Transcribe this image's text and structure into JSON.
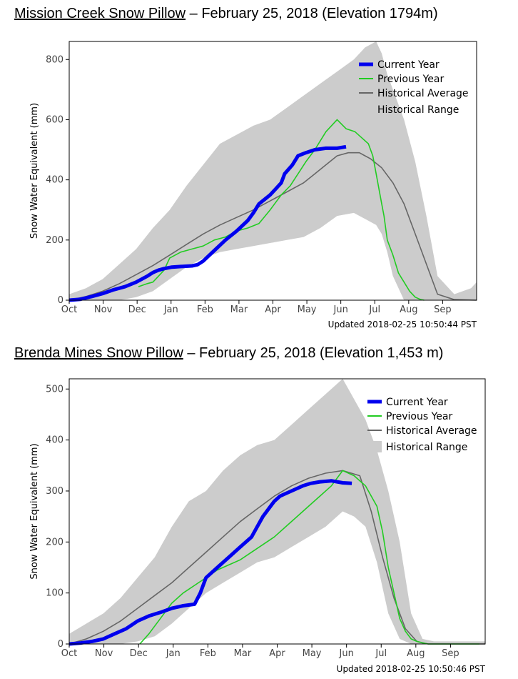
{
  "charts": [
    {
      "heading": {
        "site": "Mission Creek Snow Pillow",
        "rest": " – February 25, 2018 (Elevation 1794m)"
      },
      "updated": "Updated 2018-02-25 10:50:44 PST"
    },
    {
      "heading": {
        "site": "Brenda Mines Snow Pillow",
        "rest": " – February 25, 2018 (Elevation 1,453 m)"
      },
      "updated": "Updated 2018-02-25 10:50:46 PST"
    }
  ],
  "chart_data": [
    {
      "type": "line",
      "title": "Mission Creek Snow Pillow – February 25, 2018 (Elevation 1794m)",
      "ylabel": "Snow Water Equivalent (mm)",
      "xlabel": "",
      "x_tick_labels": [
        "Oct",
        "Nov",
        "Dec",
        "Jan",
        "Feb",
        "Mar",
        "Apr",
        "May",
        "Jun",
        "Jul",
        "Aug",
        "Sep"
      ],
      "y_ticks": [
        0,
        200,
        400,
        600,
        800
      ],
      "xlim": [
        0,
        365
      ],
      "ylim": [
        0,
        860
      ],
      "legend_position": "top-right",
      "colors": {
        "current": "#0000ee",
        "previous": "#22cc22",
        "average": "#666666",
        "range": "#cccccc"
      },
      "series": [
        {
          "name": "Current Year",
          "x": [
            0,
            10,
            20,
            30,
            40,
            50,
            60,
            70,
            75,
            80,
            85,
            92,
            100,
            110,
            115,
            120,
            130,
            140,
            150,
            160,
            165,
            170,
            175,
            180,
            185,
            190,
            193,
            200,
            205,
            212,
            220,
            230,
            240,
            248
          ],
          "y": [
            0,
            3,
            12,
            22,
            35,
            45,
            60,
            80,
            92,
            100,
            105,
            110,
            112,
            114,
            118,
            130,
            165,
            200,
            230,
            265,
            290,
            320,
            335,
            350,
            370,
            390,
            420,
            450,
            480,
            490,
            500,
            505,
            505,
            510
          ]
        },
        {
          "name": "Previous Year",
          "x": [
            62,
            70,
            75,
            80,
            85,
            90,
            100,
            110,
            120,
            130,
            140,
            150,
            160,
            170,
            180,
            190,
            198,
            205,
            212,
            220,
            230,
            240,
            248,
            256,
            262,
            268,
            272,
            275,
            280,
            282,
            285,
            290,
            295,
            300,
            305,
            310,
            315,
            318
          ],
          "y": [
            45,
            55,
            60,
            80,
            100,
            140,
            160,
            170,
            180,
            200,
            210,
            230,
            240,
            255,
            300,
            350,
            380,
            420,
            460,
            500,
            560,
            600,
            570,
            560,
            540,
            520,
            480,
            420,
            320,
            280,
            200,
            150,
            90,
            60,
            30,
            10,
            2,
            0
          ]
        },
        {
          "name": "Historical Average",
          "x": [
            0,
            15,
            30,
            45,
            60,
            75,
            90,
            105,
            120,
            135,
            150,
            165,
            180,
            195,
            210,
            220,
            230,
            240,
            250,
            260,
            270,
            280,
            290,
            300,
            310,
            320,
            330,
            345,
            365
          ],
          "y": [
            0,
            12,
            30,
            55,
            85,
            115,
            150,
            185,
            220,
            250,
            275,
            300,
            330,
            360,
            390,
            420,
            450,
            480,
            490,
            490,
            470,
            440,
            390,
            320,
            220,
            120,
            20,
            2,
            0
          ]
        },
        {
          "name": "Historical Range",
          "x": [
            0,
            15,
            30,
            45,
            60,
            75,
            90,
            105,
            120,
            135,
            150,
            165,
            180,
            195,
            210,
            225,
            240,
            255,
            265,
            275,
            280,
            285,
            290,
            300,
            310,
            320,
            330,
            345,
            360,
            365
          ],
          "upper": [
            20,
            40,
            70,
            120,
            170,
            240,
            300,
            380,
            450,
            520,
            550,
            580,
            600,
            640,
            680,
            720,
            760,
            800,
            840,
            860,
            820,
            750,
            700,
            600,
            460,
            280,
            80,
            20,
            40,
            60
          ],
          "lower": [
            0,
            0,
            0,
            0,
            10,
            30,
            70,
            110,
            140,
            160,
            170,
            180,
            190,
            200,
            210,
            240,
            280,
            290,
            270,
            250,
            220,
            160,
            80,
            0,
            0,
            0,
            0,
            0,
            0,
            0
          ]
        }
      ]
    },
    {
      "type": "line",
      "title": "Brenda Mines Snow Pillow – February 25, 2018 (Elevation 1,453 m)",
      "ylabel": "Snow Water Equivalent (mm)",
      "xlabel": "",
      "x_tick_labels": [
        "Oct",
        "Nov",
        "Dec",
        "Jan",
        "Feb",
        "Mar",
        "Apr",
        "May",
        "Jun",
        "Jul",
        "Aug",
        "Sep"
      ],
      "y_ticks": [
        0,
        100,
        200,
        300,
        400,
        500
      ],
      "xlim": [
        0,
        365
      ],
      "ylim": [
        0,
        520
      ],
      "legend_position": "top-right",
      "colors": {
        "current": "#0000ee",
        "previous": "#22cc22",
        "average": "#666666",
        "range": "#cccccc"
      },
      "series": [
        {
          "name": "Current Year",
          "x": [
            0,
            10,
            20,
            30,
            40,
            50,
            60,
            70,
            80,
            90,
            100,
            110,
            115,
            120,
            130,
            140,
            150,
            160,
            165,
            170,
            175,
            180,
            185,
            190,
            200,
            205,
            212,
            220,
            230,
            240,
            248
          ],
          "y": [
            0,
            2,
            5,
            10,
            20,
            30,
            45,
            55,
            62,
            70,
            75,
            78,
            100,
            130,
            150,
            170,
            190,
            210,
            230,
            250,
            265,
            280,
            290,
            295,
            305,
            310,
            315,
            318,
            320,
            316,
            315
          ]
        },
        {
          "name": "Previous Year",
          "x": [
            62,
            70,
            80,
            90,
            100,
            110,
            120,
            130,
            140,
            150,
            160,
            170,
            180,
            190,
            200,
            210,
            220,
            230,
            240,
            250,
            260,
            270,
            275,
            280,
            285,
            290,
            295,
            300,
            305,
            310,
            315,
            320,
            330,
            345,
            360
          ],
          "y": [
            0,
            20,
            50,
            80,
            100,
            115,
            130,
            145,
            155,
            165,
            180,
            195,
            210,
            230,
            250,
            270,
            290,
            310,
            340,
            330,
            310,
            270,
            220,
            150,
            100,
            50,
            25,
            10,
            5,
            2,
            0,
            0,
            0,
            0,
            0
          ]
        },
        {
          "name": "Historical Average",
          "x": [
            0,
            15,
            30,
            45,
            60,
            75,
            90,
            105,
            120,
            135,
            150,
            165,
            180,
            195,
            210,
            225,
            240,
            255,
            265,
            275,
            285,
            295,
            305,
            315,
            330,
            345,
            365
          ],
          "y": [
            0,
            10,
            25,
            45,
            70,
            95,
            120,
            150,
            180,
            210,
            240,
            265,
            290,
            310,
            325,
            335,
            340,
            330,
            260,
            170,
            90,
            30,
            5,
            0,
            0,
            0,
            0
          ]
        },
        {
          "name": "Historical Range",
          "x": [
            0,
            15,
            30,
            45,
            60,
            75,
            90,
            105,
            120,
            135,
            150,
            165,
            180,
            195,
            210,
            225,
            240,
            250,
            260,
            270,
            280,
            290,
            300,
            310,
            320,
            340,
            360,
            365
          ],
          "upper": [
            20,
            40,
            60,
            90,
            130,
            170,
            230,
            280,
            300,
            340,
            370,
            390,
            400,
            430,
            460,
            490,
            520,
            480,
            440,
            380,
            300,
            200,
            60,
            10,
            5,
            5,
            5,
            5
          ],
          "lower": [
            0,
            0,
            0,
            0,
            5,
            15,
            40,
            70,
            100,
            120,
            140,
            160,
            170,
            190,
            210,
            230,
            260,
            250,
            230,
            160,
            60,
            10,
            0,
            0,
            0,
            0,
            0,
            0
          ]
        }
      ]
    }
  ]
}
